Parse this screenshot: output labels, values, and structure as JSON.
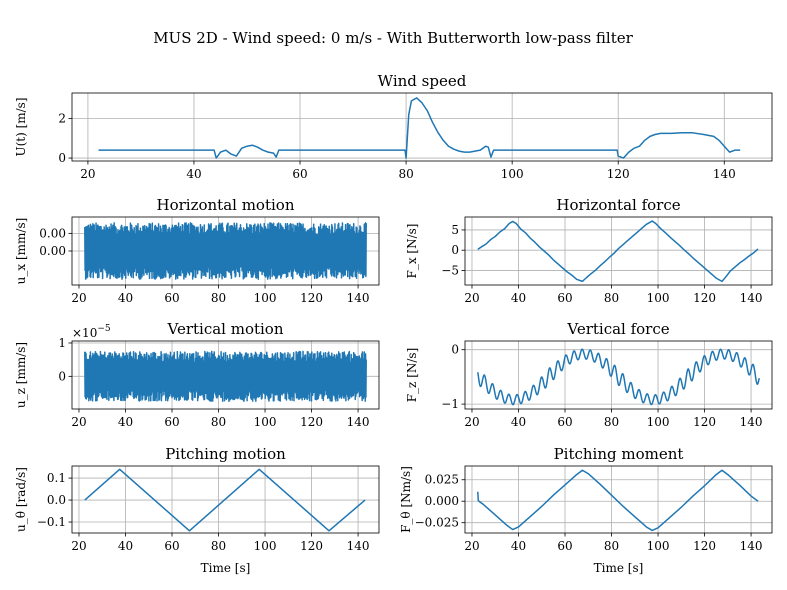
{
  "figure": {
    "suptitle": "MUS 2D - Wind speed: 0 m/s - With Butterworth low-pass filter"
  },
  "chart_data": [
    {
      "id": "wind",
      "type": "line",
      "title": "Wind speed",
      "xlabel": "",
      "ylabel": "U(t) [m/s]",
      "xlim": [
        17,
        149
      ],
      "ylim": [
        -0.15,
        3.3
      ],
      "xticks": [
        20,
        40,
        60,
        80,
        100,
        120,
        140
      ],
      "yticks": [
        0,
        2
      ],
      "ytick_labels": [
        "0",
        "2"
      ],
      "grid": true,
      "color": "#1f77b4",
      "x": [
        22,
        43.8,
        44.2,
        45,
        46,
        47,
        48,
        49,
        50,
        51,
        52,
        53,
        54,
        55,
        55.5,
        56,
        79.8,
        80.0,
        80.5,
        81,
        82,
        83,
        84,
        85,
        86,
        87,
        88,
        89,
        90,
        91,
        92,
        93,
        94,
        95,
        95.5,
        96,
        96.5,
        97,
        119.8,
        120,
        121,
        122,
        123,
        124,
        125,
        126,
        127,
        128,
        130,
        132,
        134,
        136,
        138,
        139,
        140,
        141,
        142,
        143
      ],
      "y": [
        0.4,
        0.4,
        0.0,
        0.3,
        0.4,
        0.2,
        0.1,
        0.5,
        0.6,
        0.65,
        0.55,
        0.4,
        0.3,
        0.25,
        0.05,
        0.4,
        0.4,
        0.0,
        2.2,
        2.9,
        3.05,
        2.8,
        2.4,
        1.8,
        1.3,
        0.9,
        0.6,
        0.45,
        0.35,
        0.3,
        0.3,
        0.35,
        0.4,
        0.6,
        0.55,
        0.05,
        0.4,
        0.4,
        0.4,
        0.1,
        0.0,
        0.3,
        0.5,
        0.6,
        0.9,
        1.1,
        1.2,
        1.25,
        1.25,
        1.28,
        1.28,
        1.2,
        1.1,
        0.9,
        0.6,
        0.3,
        0.4,
        0.4
      ]
    },
    {
      "id": "ux",
      "type": "line",
      "title": "Horizontal motion",
      "xlabel": "",
      "ylabel": "u_x [mm/s]",
      "xlim": [
        17,
        149
      ],
      "ylim": [
        -0.0106,
        0.0106
      ],
      "xticks": [
        20,
        40,
        60,
        80,
        100,
        120,
        140
      ],
      "yticks": [
        0.0055,
        0.0
      ],
      "ytick_labels": [
        "0.00",
        "0.00"
      ],
      "grid": true,
      "color": "#1f77b4",
      "x_range": [
        22.5,
        143.5
      ],
      "amplitude": 0.0088,
      "sample_count": 900
    },
    {
      "id": "fx",
      "type": "line",
      "title": "Horizontal force",
      "xlabel": "",
      "ylabel": "F_x [N/s]",
      "xlim": [
        17,
        149
      ],
      "ylim": [
        -8.6,
        8.2
      ],
      "xticks": [
        20,
        40,
        60,
        80,
        100,
        120,
        140
      ],
      "yticks": [
        5,
        0,
        -5
      ],
      "ytick_labels": [
        "5",
        "0",
        "−5"
      ],
      "grid": true,
      "color": "#1f77b4",
      "x": [
        22.5,
        24,
        26,
        28,
        30,
        32,
        34,
        36,
        37.5,
        39,
        41,
        43,
        45,
        47,
        49,
        51,
        53,
        55,
        57,
        59,
        61,
        63,
        65,
        67.5,
        69,
        71,
        73,
        75,
        77,
        79,
        81,
        83,
        85,
        87,
        89,
        91,
        93,
        95,
        97.5,
        99,
        101,
        103,
        105,
        107,
        109,
        111,
        113,
        115,
        117,
        119,
        121,
        123,
        125,
        127.5,
        129,
        131,
        133,
        135,
        137,
        139,
        141,
        143
      ],
      "y": [
        0.2,
        0.8,
        1.5,
        2.6,
        3.4,
        4.5,
        5.3,
        6.6,
        7.1,
        6.6,
        5.2,
        4.3,
        3.0,
        2.0,
        0.8,
        -0.2,
        -1.2,
        -2.4,
        -3.4,
        -4.4,
        -5.4,
        -6.2,
        -7.2,
        -7.7,
        -6.9,
        -5.9,
        -5.0,
        -3.9,
        -2.9,
        -1.8,
        -0.8,
        0.4,
        1.4,
        2.4,
        3.4,
        4.4,
        5.4,
        6.4,
        7.2,
        6.6,
        5.4,
        4.4,
        3.3,
        2.3,
        1.3,
        0.2,
        -0.8,
        -1.9,
        -2.9,
        -3.9,
        -4.9,
        -5.9,
        -6.9,
        -7.7,
        -6.7,
        -5.2,
        -4.2,
        -3.2,
        -2.4,
        -1.5,
        -0.7,
        0.3
      ]
    },
    {
      "id": "uz",
      "type": "line",
      "title": "Vertical motion",
      "xlabel": "",
      "ylabel": "u_z [mm/s]",
      "offset_text": "×10",
      "offset_exp": "−5",
      "xlim": [
        17,
        149
      ],
      "ylim": [
        -0.98,
        1.06
      ],
      "xticks": [
        20,
        40,
        60,
        80,
        100,
        120,
        140
      ],
      "yticks": [
        1,
        0
      ],
      "ytick_labels": [
        "1",
        "0"
      ],
      "grid": true,
      "color": "#1f77b4",
      "x_range": [
        22.5,
        143.5
      ],
      "amplitude": 0.75,
      "sample_count": 900
    },
    {
      "id": "fz",
      "type": "line",
      "title": "Vertical force",
      "xlabel": "",
      "ylabel": "F_z [N/s]",
      "xlim": [
        17,
        149
      ],
      "ylim": [
        -1.09,
        0.16
      ],
      "xticks": [
        20,
        40,
        60,
        80,
        100,
        120,
        140
      ],
      "yticks": [
        0,
        -1
      ],
      "ytick_labels": [
        "0",
        "−1"
      ],
      "grid": true,
      "color": "#1f77b4",
      "x_range": [
        22.5,
        143.5
      ],
      "period_slow": 60,
      "phase_slow_center": 38,
      "oscillation_period": 3.5,
      "oscillation_amplitude": 0.15
    },
    {
      "id": "utheta",
      "type": "line",
      "title": "Pitching motion",
      "xlabel": "Time [s]",
      "ylabel": "u_θ [rad/s]",
      "xlim": [
        17,
        149
      ],
      "ylim": [
        -0.15,
        0.155
      ],
      "xticks": [
        20,
        40,
        60,
        80,
        100,
        120,
        140
      ],
      "yticks": [
        0.1,
        0.0,
        -0.1
      ],
      "ytick_labels": [
        "0.1",
        "0.0",
        "−0.1"
      ],
      "grid": true,
      "color": "#1f77b4",
      "x": [
        22.5,
        37.5,
        67.5,
        97.5,
        127.5,
        143
      ],
      "y": [
        0.0,
        0.14,
        -0.14,
        0.14,
        -0.14,
        0.0
      ]
    },
    {
      "id": "ftheta",
      "type": "line",
      "title": "Pitching moment",
      "xlabel": "Time [s]",
      "ylabel": "F_θ [Nm/s]",
      "xlim": [
        17,
        149
      ],
      "ylim": [
        -0.037,
        0.041
      ],
      "xticks": [
        20,
        40,
        60,
        80,
        100,
        120,
        140
      ],
      "yticks": [
        0.025,
        0.0,
        -0.025
      ],
      "ytick_labels": [
        "0.025",
        "0.000",
        "−0.025"
      ],
      "grid": true,
      "color": "#1f77b4",
      "x": [
        22.5,
        22.7,
        23,
        25,
        30,
        35,
        37.5,
        40,
        45,
        50,
        55,
        60,
        65,
        67.5,
        70,
        75,
        80,
        85,
        90,
        95,
        97.5,
        100,
        105,
        110,
        115,
        120,
        125,
        127.5,
        130,
        135,
        140,
        143
      ],
      "y": [
        0.011,
        0.001,
        0.0,
        -0.004,
        -0.016,
        -0.028,
        -0.033,
        -0.03,
        -0.018,
        -0.006,
        0.007,
        0.019,
        0.031,
        0.036,
        0.032,
        0.02,
        0.007,
        -0.006,
        -0.018,
        -0.03,
        -0.034,
        -0.031,
        -0.019,
        -0.007,
        0.006,
        0.018,
        0.031,
        0.036,
        0.031,
        0.019,
        0.006,
        0.0
      ]
    }
  ]
}
